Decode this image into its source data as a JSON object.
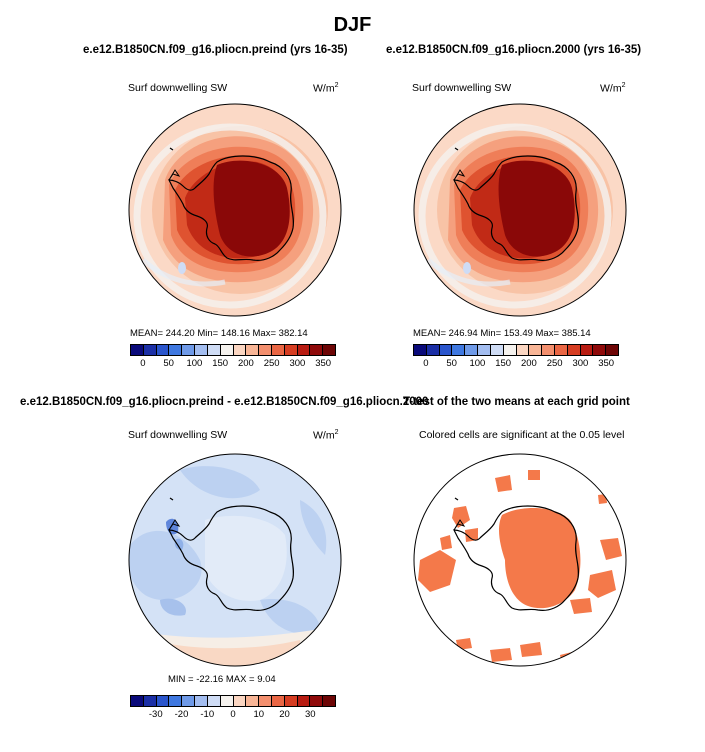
{
  "figure": {
    "title": "DJF",
    "sig_note": "Colored cells are significant at the 0.05 level"
  },
  "chart_data": [
    {
      "type": "heatmap",
      "title": "e.e12.B1850CN.f09_g16.pliocn.preind (yrs 16-35)",
      "left_string": "Surf downwelling SW",
      "units": "W/m",
      "units_sup": "2",
      "stats_text": "MEAN= 244.20   Min= 148.16   Max= 382.14",
      "mean": 244.2,
      "min": 148.16,
      "max": 382.14,
      "colorbar_levels": [
        0,
        25,
        50,
        75,
        100,
        125,
        150,
        175,
        200,
        225,
        250,
        275,
        300,
        325,
        350
      ],
      "colorbar_tick_labels": [
        "0",
        "50",
        "100",
        "150",
        "200",
        "250",
        "300",
        "350"
      ],
      "colorbar_colors": [
        "#0a0a7a",
        "#1b2fa6",
        "#2a55cc",
        "#3f78e0",
        "#6f9ae8",
        "#a3bdf0",
        "#cfdcf5",
        "#f5f2ee",
        "#fbd6c2",
        "#f8b596",
        "#f38f6e",
        "#ea6644",
        "#d63d22",
        "#b81c12",
        "#8f0a0a",
        "#6d0505"
      ]
    },
    {
      "type": "heatmap",
      "title": "e.e12.B1850CN.f09_g16.pliocn.2000 (yrs 16-35)",
      "left_string": "Surf downwelling SW",
      "units": "W/m",
      "units_sup": "2",
      "stats_text": "MEAN= 246.94   Min= 153.49   Max= 385.14",
      "mean": 246.94,
      "min": 153.49,
      "max": 385.14,
      "colorbar_levels": [
        0,
        25,
        50,
        75,
        100,
        125,
        150,
        175,
        200,
        225,
        250,
        275,
        300,
        325,
        350
      ],
      "colorbar_tick_labels": [
        "0",
        "50",
        "100",
        "150",
        "200",
        "250",
        "300",
        "350"
      ],
      "colorbar_colors": [
        "#0a0a7a",
        "#1b2fa6",
        "#2a55cc",
        "#3f78e0",
        "#6f9ae8",
        "#a3bdf0",
        "#cfdcf5",
        "#f5f2ee",
        "#fbd6c2",
        "#f8b596",
        "#f38f6e",
        "#ea6644",
        "#d63d22",
        "#b81c12",
        "#8f0a0a",
        "#6d0505"
      ]
    },
    {
      "type": "heatmap",
      "title": "e.e12.B1850CN.f09_g16.pliocn.preind - e.e12.B1850CN.f09_g16.pliocn.2000",
      "left_string": "Surf downwelling SW",
      "units": "W/m",
      "units_sup": "2",
      "stats_text": "MIN = -22.16  MAX =    9.04",
      "min": -22.16,
      "max": 9.04,
      "colorbar_levels": [
        -35,
        -30,
        -25,
        -20,
        -15,
        -10,
        -5,
        0,
        5,
        10,
        15,
        20,
        25,
        30,
        35
      ],
      "colorbar_tick_labels": [
        "-30",
        "-20",
        "-10",
        "0",
        "10",
        "20",
        "30"
      ],
      "colorbar_colors": [
        "#0a0a7a",
        "#1b2fa6",
        "#2a55cc",
        "#3f78e0",
        "#6f9ae8",
        "#a3bdf0",
        "#cfdcf5",
        "#f5f2ee",
        "#fbd6c2",
        "#f8b596",
        "#f38f6e",
        "#ea6644",
        "#d63d22",
        "#b81c12",
        "#8f0a0a",
        "#6d0505"
      ]
    },
    {
      "type": "heatmap",
      "title": "T-test of the two means at each grid point",
      "left_string": "",
      "significant_color": "#f4794a"
    }
  ]
}
